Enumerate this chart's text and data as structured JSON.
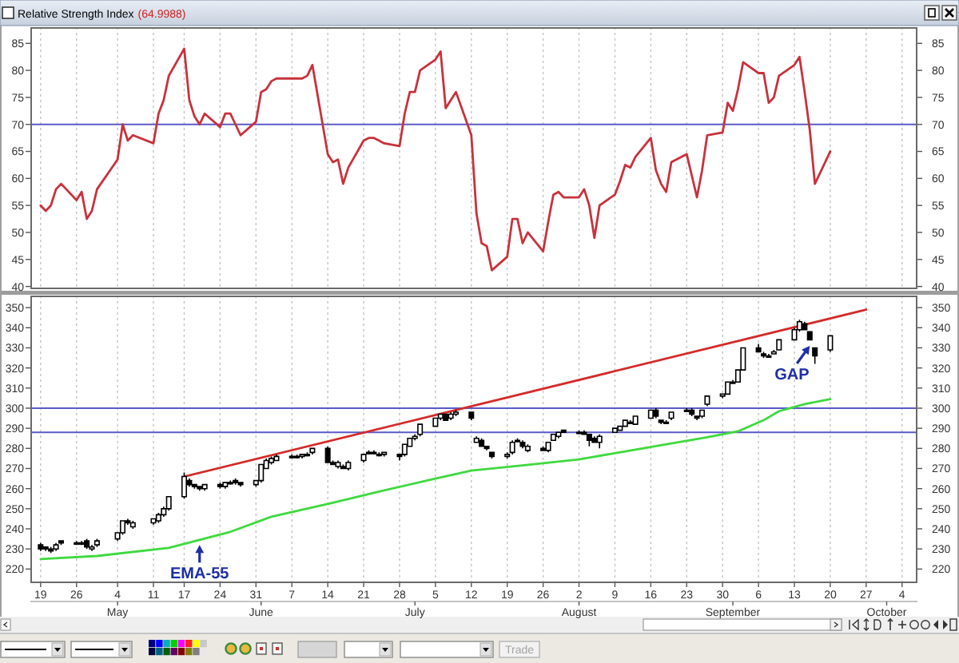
{
  "chart_data": [
    {
      "type": "line",
      "title": "Relative Strength Index",
      "subtitle": "(64.9988)",
      "x": [
        "--04-19",
        "--04-20",
        "--04-21",
        "--04-22",
        "--04-23",
        "--04-26",
        "--04-27",
        "--04-28",
        "--04-29",
        "--04-30",
        "--05-04",
        "--05-05",
        "--05-06",
        "--05-07",
        "--05-11",
        "--05-12",
        "--05-13",
        "--05-14",
        "--05-17",
        "--05-18",
        "--05-19",
        "--05-20",
        "--05-21",
        "--05-24",
        "--05-25",
        "--05-26",
        "--05-27",
        "--05-28",
        "--05-31",
        "--06-01",
        "--06-02",
        "--06-03",
        "--06-04",
        "--06-07",
        "--06-08",
        "--06-09",
        "--06-10",
        "--06-11",
        "--06-14",
        "--06-15",
        "--06-16",
        "--06-17",
        "--06-18",
        "--06-21",
        "--06-22",
        "--06-23",
        "--06-24",
        "--06-25",
        "--06-28",
        "--06-29",
        "--06-30",
        "--07-01",
        "--07-02",
        "--07-05",
        "--07-06",
        "--07-07",
        "--07-08",
        "--07-09",
        "--07-12",
        "--07-13",
        "--07-14",
        "--07-15",
        "--07-16",
        "--07-19",
        "--07-20",
        "--07-21",
        "--07-22",
        "--07-23",
        "--07-26",
        "--07-27",
        "--07-28",
        "--07-29",
        "--07-30",
        "--08-02",
        "--08-03",
        "--08-04",
        "--08-05",
        "--08-06",
        "--08-09",
        "--08-10",
        "--08-11",
        "--08-12",
        "--08-13",
        "--08-16",
        "--08-17",
        "--08-18",
        "--08-19",
        "--08-20",
        "--08-23",
        "--08-24",
        "--08-25",
        "--08-26",
        "--08-27",
        "--08-30",
        "--08-31",
        "--09-01",
        "--09-02",
        "--09-03",
        "--09-06",
        "--09-07",
        "--09-08",
        "--09-09",
        "--09-10",
        "--09-13",
        "--09-14",
        "--09-15",
        "--09-16",
        "--09-17",
        "--09-20"
      ],
      "series": [
        {
          "color": "#c8323c",
          "values": [
            55,
            54,
            55,
            58,
            59,
            56,
            57.5,
            52.5,
            54,
            58,
            63.5,
            70,
            67,
            68,
            66.5,
            72,
            74.5,
            79,
            84,
            74.5,
            71.5,
            70,
            72,
            69.5,
            72,
            72,
            70,
            68,
            70.5,
            76,
            76.5,
            78,
            78.5,
            78.5,
            78.5,
            78.5,
            79,
            81,
            64.5,
            63,
            63.5,
            59,
            62,
            67,
            67.5,
            67.5,
            67,
            66.5,
            66,
            72,
            76,
            76,
            80,
            82,
            83.5,
            73,
            74.5,
            76,
            68,
            53.5,
            48,
            47.5,
            43,
            45.5,
            52.5,
            52.5,
            48,
            50,
            46.5,
            52,
            57,
            57.5,
            56.5,
            56.5,
            58,
            55,
            49,
            55,
            57,
            59.5,
            62.5,
            62,
            64,
            67.5,
            61.5,
            59,
            57.5,
            63,
            64.5,
            60.5,
            56.5,
            61.5,
            68,
            68.5,
            74,
            72.5,
            76.5,
            81.5,
            79.5,
            79.5,
            74,
            75,
            79,
            81,
            82.5,
            76,
            69,
            59,
            65
          ]
        }
      ],
      "xlim": [
        "--04-17",
        "--10-07"
      ],
      "xticks": [
        {
          "value": "--04-19",
          "label": null
        },
        {
          "value": "--04-26",
          "label": null
        },
        {
          "value": "--05-04",
          "label": null
        },
        {
          "value": "--05-11",
          "label": null
        },
        {
          "value": "--05-17",
          "label": null
        },
        {
          "value": "--05-24",
          "label": null
        },
        {
          "value": "--05-31",
          "label": null
        },
        {
          "value": "--06-07",
          "label": null
        },
        {
          "value": "--06-14",
          "label": null
        },
        {
          "value": "--06-21",
          "label": null
        },
        {
          "value": "--06-28",
          "label": null
        },
        {
          "value": "--07-05",
          "label": null
        },
        {
          "value": "--07-12",
          "label": null
        },
        {
          "value": "--07-19",
          "label": null
        },
        {
          "value": "--07-26",
          "label": null
        },
        {
          "value": "--08-02",
          "label": null
        },
        {
          "value": "--08-09",
          "label": null
        },
        {
          "value": "--08-16",
          "label": null
        },
        {
          "value": "--08-23",
          "label": null
        },
        {
          "value": "--08-30",
          "label": null
        },
        {
          "value": "--09-06",
          "label": null
        },
        {
          "value": "--09-13",
          "label": null
        },
        {
          "value": "--09-20",
          "label": null
        },
        {
          "value": "--09-27",
          "label": null
        },
        {
          "value": "--10-04",
          "label": null
        }
      ],
      "ylim": [
        39.5,
        88
      ],
      "yticks": [
        40,
        45,
        50,
        55,
        60,
        65,
        70,
        75,
        80,
        85
      ],
      "y2lim": [
        39.5,
        88
      ],
      "y2ticks": [
        40,
        45,
        50,
        55,
        60,
        65,
        70,
        75,
        80,
        85
      ],
      "ref_lines": [
        {
          "axis": "y",
          "value": 70,
          "color": "#5a5ac8"
        }
      ],
      "grid": "x",
      "tick_labels": "y"
    },
    {
      "type": "candlestick",
      "x": [
        "--04-19",
        "--04-20",
        "--04-21",
        "--04-22",
        "--04-23",
        "--04-26",
        "--04-27",
        "--04-28",
        "--04-29",
        "--04-30",
        "--05-04",
        "--05-05",
        "--05-06",
        "--05-07",
        "--05-11",
        "--05-12",
        "--05-13",
        "--05-14",
        "--05-17",
        "--05-18",
        "--05-19",
        "--05-20",
        "--05-21",
        "--05-24",
        "--05-25",
        "--05-26",
        "--05-27",
        "--05-28",
        "--05-31",
        "--06-01",
        "--06-02",
        "--06-03",
        "--06-04",
        "--06-07",
        "--06-08",
        "--06-09",
        "--06-10",
        "--06-11",
        "--06-14",
        "--06-15",
        "--06-16",
        "--06-17",
        "--06-18",
        "--06-21",
        "--06-22",
        "--06-23",
        "--06-24",
        "--06-25",
        "--06-28",
        "--06-29",
        "--06-30",
        "--07-01",
        "--07-02",
        "--07-05",
        "--07-06",
        "--07-07",
        "--07-08",
        "--07-09",
        "--07-12",
        "--07-13",
        "--07-14",
        "--07-15",
        "--07-16",
        "--07-19",
        "--07-20",
        "--07-21",
        "--07-22",
        "--07-23",
        "--07-26",
        "--07-27",
        "--07-28",
        "--07-29",
        "--07-30",
        "--08-02",
        "--08-03",
        "--08-04",
        "--08-05",
        "--08-06",
        "--08-09",
        "--08-10",
        "--08-11",
        "--08-12",
        "--08-13",
        "--08-16",
        "--08-17",
        "--08-18",
        "--08-19",
        "--08-20",
        "--08-23",
        "--08-24",
        "--08-25",
        "--08-26",
        "--08-27",
        "--08-30",
        "--08-31",
        "--09-01",
        "--09-02",
        "--09-03",
        "--09-06",
        "--09-07",
        "--09-08",
        "--09-09",
        "--09-10",
        "--09-13",
        "--09-14",
        "--09-15",
        "--09-16",
        "--09-17",
        "--09-20"
      ],
      "ohlc": [
        [
          232,
          233,
          229,
          230
        ],
        [
          231,
          231,
          229,
          230
        ],
        [
          230,
          231,
          228,
          229
        ],
        [
          230,
          233,
          229,
          232
        ],
        [
          234,
          234,
          232,
          233
        ],
        [
          233,
          234,
          232,
          233
        ],
        [
          233,
          234,
          232,
          233
        ],
        [
          234,
          235,
          230,
          231
        ],
        [
          230,
          232,
          229,
          231
        ],
        [
          232,
          235,
          231,
          234
        ],
        [
          235,
          238,
          234,
          238
        ],
        [
          238,
          244,
          237,
          244
        ],
        [
          244,
          245,
          242,
          243
        ],
        [
          241,
          244,
          240,
          243
        ],
        [
          243,
          245,
          242,
          245
        ],
        [
          244,
          248,
          243,
          247
        ],
        [
          247,
          251,
          246,
          250
        ],
        [
          250,
          256,
          249,
          256
        ],
        [
          256,
          268,
          255,
          266
        ],
        [
          264,
          265,
          261,
          262
        ],
        [
          262,
          262,
          260,
          261
        ],
        [
          261,
          261,
          259,
          260
        ],
        [
          260,
          262,
          259,
          262
        ],
        [
          262,
          263,
          260,
          261
        ],
        [
          261,
          263,
          260,
          263
        ],
        [
          263,
          264,
          262,
          263
        ],
        [
          264,
          265,
          262,
          263
        ],
        [
          263,
          263,
          261,
          262
        ],
        [
          262,
          264,
          261,
          264
        ],
        [
          264,
          272,
          263,
          272
        ],
        [
          270,
          275,
          270,
          274
        ],
        [
          273,
          276,
          272,
          275
        ],
        [
          274,
          277,
          274,
          276
        ],
        [
          276,
          277,
          275,
          276
        ],
        [
          276,
          277,
          275,
          276
        ],
        [
          276,
          277,
          275,
          277
        ],
        [
          277,
          278,
          276,
          277
        ],
        [
          278,
          280,
          277,
          280
        ],
        [
          280,
          281,
          273,
          273
        ],
        [
          273,
          274,
          272,
          272
        ],
        [
          271,
          274,
          270,
          273
        ],
        [
          271,
          272,
          270,
          270
        ],
        [
          270,
          274,
          269,
          273
        ],
        [
          274,
          277,
          273,
          277
        ],
        [
          278,
          279,
          277,
          278
        ],
        [
          278,
          279,
          277,
          278
        ],
        [
          277,
          278,
          276,
          277
        ],
        [
          277,
          278,
          276,
          278
        ],
        [
          277,
          277,
          274,
          276
        ],
        [
          277,
          282,
          276,
          282
        ],
        [
          281,
          285,
          281,
          285
        ],
        [
          285,
          287,
          284,
          286
        ],
        [
          287,
          292,
          286,
          292
        ],
        [
          291,
          295,
          291,
          295
        ],
        [
          295,
          297,
          294,
          297
        ],
        [
          297,
          297,
          294,
          294
        ],
        [
          295,
          298,
          294,
          297
        ],
        [
          297,
          299,
          296,
          298
        ],
        [
          298,
          298,
          294,
          295
        ],
        [
          283,
          286,
          283,
          285
        ],
        [
          284,
          285,
          281,
          281
        ],
        [
          281,
          281,
          279,
          280
        ],
        [
          278,
          278,
          275,
          276
        ],
        [
          276,
          278,
          275,
          277
        ],
        [
          278,
          284,
          277,
          283
        ],
        [
          284,
          285,
          283,
          284
        ],
        [
          283,
          284,
          280,
          281
        ],
        [
          279,
          282,
          278,
          281
        ],
        [
          280,
          281,
          279,
          279
        ],
        [
          279,
          283,
          278,
          283
        ],
        [
          284,
          287,
          284,
          287
        ],
        [
          286,
          288,
          285,
          288
        ],
        [
          289,
          289,
          288,
          288
        ],
        [
          288,
          289,
          287,
          288
        ],
        [
          288,
          289,
          287,
          287
        ],
        [
          287,
          287,
          281,
          284
        ],
        [
          285,
          286,
          283,
          283
        ],
        [
          283,
          287,
          280,
          286
        ],
        [
          288,
          290,
          288,
          290
        ],
        [
          289,
          291,
          289,
          291
        ],
        [
          291,
          294,
          291,
          294
        ],
        [
          293,
          294,
          292,
          293
        ],
        [
          292,
          296,
          292,
          296
        ],
        [
          295,
          299,
          295,
          299
        ],
        [
          299,
          300,
          295,
          296
        ],
        [
          294,
          294,
          292,
          293
        ],
        [
          293,
          294,
          292,
          293
        ],
        [
          295,
          298,
          294,
          298
        ],
        [
          299,
          300,
          298,
          299
        ],
        [
          299,
          300,
          296,
          297
        ],
        [
          296,
          296,
          294,
          295
        ],
        [
          296,
          299,
          295,
          299
        ],
        [
          302,
          306,
          301,
          306
        ],
        [
          306,
          307,
          305,
          307
        ],
        [
          307,
          313,
          307,
          313
        ],
        [
          313,
          314,
          312,
          313
        ],
        [
          313,
          319,
          313,
          319
        ],
        [
          319,
          330,
          319,
          330
        ],
        [
          330,
          332,
          328,
          328
        ],
        [
          327,
          328,
          325,
          326
        ],
        [
          326,
          327,
          325,
          326
        ],
        [
          327,
          329,
          327,
          328
        ],
        [
          329,
          334,
          329,
          334
        ],
        [
          334,
          340,
          334,
          339
        ],
        [
          339,
          344,
          338,
          343
        ],
        [
          342,
          343,
          339,
          339
        ],
        [
          338,
          338,
          334,
          334
        ],
        [
          330,
          330,
          322,
          326
        ],
        [
          329,
          336,
          328,
          336
        ]
      ],
      "series": [
        {
          "type": "line",
          "color": "#3fd93f",
          "x": [
            "--04-19",
            "--04-30",
            "--05-14",
            "--05-26",
            "--06-03",
            "--06-15",
            "--06-24",
            "--07-05",
            "--07-12",
            "--07-22",
            "--08-02",
            "--08-11",
            "--08-20",
            "--08-27",
            "--09-02",
            "--09-07",
            "--09-10",
            "--09-15",
            "--09-20"
          ],
          "values": [
            225,
            226.5,
            230.5,
            238.5,
            246,
            253,
            258.5,
            265,
            269,
            271.5,
            274.5,
            278.5,
            282.5,
            285.5,
            288.5,
            294,
            298.5,
            302,
            304.5
          ]
        },
        {
          "type": "line",
          "color": "#d42a2a",
          "x": [
            "--05-17",
            "--09-27"
          ],
          "values": [
            266,
            349
          ]
        }
      ],
      "xlim": [
        "--04-17",
        "--10-07"
      ],
      "xticks": [
        {
          "value": "--04-19",
          "label": "19"
        },
        {
          "value": "--04-26",
          "label": "26"
        },
        {
          "value": "--05-04",
          "label": "4"
        },
        {
          "value": "--05-11",
          "label": "11"
        },
        {
          "value": "--05-17",
          "label": "17"
        },
        {
          "value": "--05-24",
          "label": "24"
        },
        {
          "value": "--05-31",
          "label": "31"
        },
        {
          "value": "--06-07",
          "label": "7"
        },
        {
          "value": "--06-14",
          "label": "14"
        },
        {
          "value": "--06-21",
          "label": "21"
        },
        {
          "value": "--06-28",
          "label": "28"
        },
        {
          "value": "--07-05",
          "label": "5"
        },
        {
          "value": "--07-12",
          "label": "12"
        },
        {
          "value": "--07-19",
          "label": "19"
        },
        {
          "value": "--07-26",
          "label": "26"
        },
        {
          "value": "--08-02",
          "label": "2"
        },
        {
          "value": "--08-09",
          "label": "9"
        },
        {
          "value": "--08-16",
          "label": "16"
        },
        {
          "value": "--08-23",
          "label": "23"
        },
        {
          "value": "--08-30",
          "label": "30"
        },
        {
          "value": "--09-06",
          "label": "6"
        },
        {
          "value": "--09-13",
          "label": "13"
        },
        {
          "value": "--09-20",
          "label": "20"
        },
        {
          "value": "--09-27",
          "label": "27"
        },
        {
          "value": "--10-04",
          "label": "4"
        }
      ],
      "x2lim": [
        "--04-17",
        "--10-07"
      ],
      "x2ticks": [
        {
          "value": "--05-04",
          "label": "May"
        },
        {
          "value": "--06-01",
          "label": "June"
        },
        {
          "value": "--07-01",
          "label": "July"
        },
        {
          "value": "--08-02",
          "label": "August"
        },
        {
          "value": "--09-01",
          "label": "September"
        },
        {
          "value": "--10-01",
          "label": "October"
        }
      ],
      "ylim": [
        213,
        356
      ],
      "yticks": [
        220,
        230,
        240,
        250,
        260,
        270,
        280,
        290,
        300,
        310,
        320,
        330,
        340,
        350
      ],
      "y2lim": [
        213,
        356
      ],
      "y2ticks": [
        220,
        230,
        240,
        250,
        260,
        270,
        280,
        290,
        300,
        310,
        320,
        330,
        340,
        350
      ],
      "ref_lines": [
        {
          "axis": "y",
          "value": 300,
          "color": "#5a5ac8"
        },
        {
          "axis": "y",
          "value": 288,
          "color": "#5a5ac8"
        }
      ],
      "grid": "x",
      "annotations": [
        {
          "text": "EMA-55",
          "x": "--05-20",
          "y": 232
        },
        {
          "text": "GAP",
          "x": "--09-16",
          "y": 331
        },
        "Trade"
      ]
    }
  ]
}
